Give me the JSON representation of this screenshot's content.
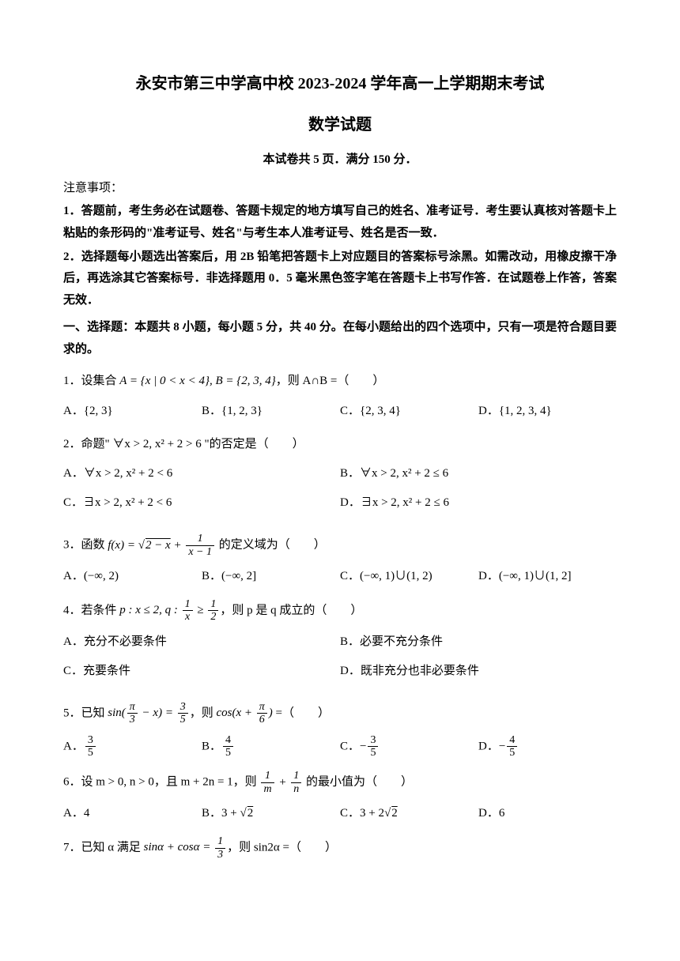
{
  "header": {
    "title_main": "永安市第三中学高中校 2023-2024 学年高一上学期期末考试",
    "title_sub": "数学试题",
    "info": "本试卷共 5 页．满分 150 分．"
  },
  "notice": {
    "label": "注意事项：",
    "item1": "1．答题前，考生务必在试题卷、答题卡规定的地方填写自己的姓名、准考证号．考生要认真核对答题卡上粘贴的条形码的\"准考证号、姓名\"与考生本人准考证号、姓名是否一致．",
    "item2": "2．选择题每小题选出答案后，用 2B 铅笔把答题卡上对应题目的答案标号涂黑。如需改动，用橡皮擦干净后，再选涂其它答案标号．非选择题用 0．5 毫米黑色签字笔在答题卡上书写作答．在试题卷上作答，答案无效．"
  },
  "section1": {
    "header": "一、选择题：本题共 8 小题，每小题 5 分，共 40 分。在每小题给出的四个选项中，只有一项是符合题目要求的。"
  },
  "q1": {
    "stem_prefix": "1．设集合 ",
    "stem_math": "A = {x | 0 < x < 4}, B = {2, 3, 4}",
    "stem_suffix": "，则 A∩B =（　　）",
    "optA": "A．{2, 3}",
    "optB": "B．{1, 2, 3}",
    "optC": "C．{2, 3, 4}",
    "optD": "D．{1, 2, 3, 4}"
  },
  "q2": {
    "stem": "2．命题\" ∀x > 2, x² + 2 > 6 \"的否定是（　　）",
    "optA": "A．∀x > 2, x² + 2 < 6",
    "optB": "B．∀x > 2, x² + 2 ≤ 6",
    "optC": "C．∃x > 2, x² + 2 < 6",
    "optD": "D．∃x > 2, x² + 2 ≤ 6"
  },
  "q3": {
    "stem_prefix": "3．函数 ",
    "stem_suffix": " 的定义域为（　　）",
    "optA": "A．(−∞, 2)",
    "optB": "B．(−∞, 2]",
    "optC": "C．(−∞, 1)∪(1, 2)",
    "optD": "D．(−∞, 1)∪(1, 2]"
  },
  "q4": {
    "stem_prefix": "4．若条件 ",
    "stem_suffix": "，则 p 是 q 成立的（　　）",
    "optA": "A．充分不必要条件",
    "optB": "B．必要不充分条件",
    "optC": "C．充要条件",
    "optD": "D．既非充分也非必要条件"
  },
  "q5": {
    "stem_prefix": "5．已知 ",
    "stem_mid": "，则 ",
    "stem_suffix": " =（　　）"
  },
  "q6": {
    "stem_prefix": "6．设 m > 0, n > 0，且 m + 2n = 1，则 ",
    "stem_suffix": " 的最小值为（　　）",
    "optA": "A．4",
    "optD": "D．6"
  },
  "q7": {
    "stem_prefix": "7．已知 α 满足 ",
    "stem_suffix": "，则 sin2α =（　　）"
  }
}
